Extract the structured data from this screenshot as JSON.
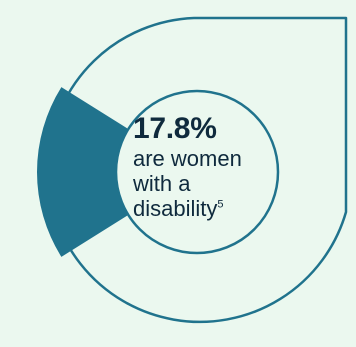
{
  "chart_data": {
    "type": "pie",
    "title": "",
    "slices": [
      {
        "label": "are women with a disability",
        "value": 17.8
      }
    ],
    "headline_value": "17.8%",
    "caption_lines": [
      "are women",
      "with a",
      "disability"
    ],
    "footnote": "5"
  },
  "colors": {
    "background": "#ebf8ef",
    "accent": "#20738d",
    "text": "#0f2a3d"
  }
}
